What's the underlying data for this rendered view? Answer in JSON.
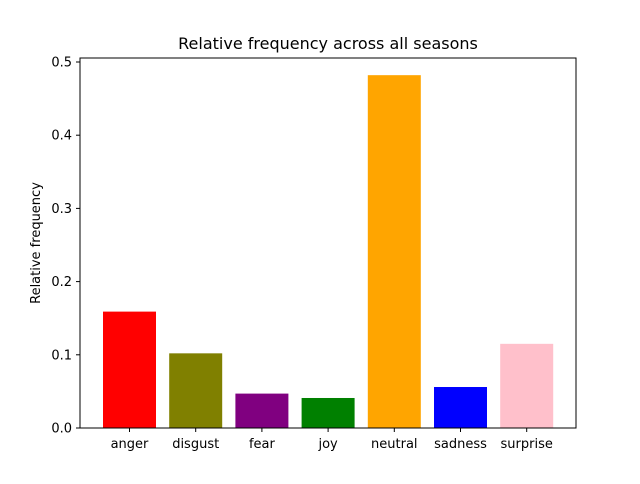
{
  "chart_data": {
    "type": "bar",
    "title": "Relative frequency across all seasons",
    "xlabel": "",
    "ylabel": "Relative frequency",
    "categories": [
      "anger",
      "disgust",
      "fear",
      "joy",
      "neutral",
      "sadness",
      "surprise"
    ],
    "values": [
      0.159,
      0.102,
      0.047,
      0.041,
      0.482,
      0.056,
      0.115
    ],
    "colors": [
      "#ff0000",
      "#808000",
      "#800080",
      "#008000",
      "#ffa500",
      "#0000ff",
      "#ffc0cb"
    ],
    "ylim": [
      0,
      0.5
    ],
    "yticks": [
      "0.0",
      "0.1",
      "0.2",
      "0.3",
      "0.4",
      "0.5"
    ],
    "grid": false,
    "legend": "none"
  }
}
